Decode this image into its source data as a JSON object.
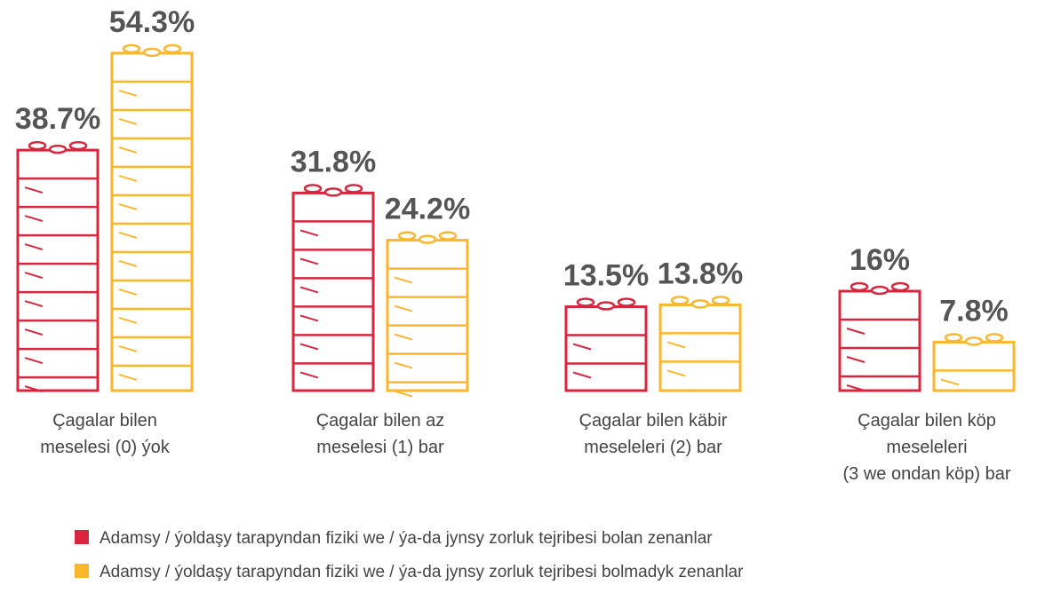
{
  "chart_data": {
    "type": "bar",
    "categories": [
      [
        "Çagalar bilen",
        "meselesi (0) ýok"
      ],
      [
        "Çagalar bilen az",
        "meselesi (1) bar"
      ],
      [
        "Çagalar bilen käbir",
        "meseleleri (2) bar"
      ],
      [
        "Çagalar bilen köp",
        "meseleleri",
        "(3 we ondan köp) bar"
      ]
    ],
    "series": [
      {
        "name": "Adamsy / ýoldaşy tarapyndan fiziki we / ýa-da jynsy zorluk tejribesi bolan zenanlar",
        "color": "#d7263d",
        "values": [
          38.7,
          31.8,
          13.5,
          16
        ],
        "value_labels": [
          "38.7%",
          "31.8%",
          "13.5%",
          "16%"
        ]
      },
      {
        "name": "Adamsy / ýoldaşy tarapyndan fiziki we / ýa-da jynsy zorluk tejribesi bolmadyk zenanlar",
        "color": "#fbb72c",
        "values": [
          54.3,
          24.2,
          13.8,
          7.8
        ],
        "value_labels": [
          "54.3%",
          "24.2%",
          "13.8%",
          "7.8%"
        ]
      }
    ],
    "legend": "bottom-left"
  }
}
